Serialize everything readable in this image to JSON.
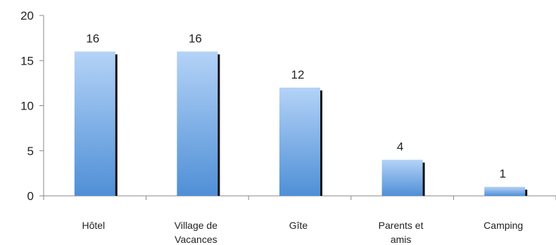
{
  "chart_data": {
    "type": "bar",
    "title": "",
    "xlabel": "",
    "ylabel": "",
    "categories": [
      [
        "Hôtel"
      ],
      [
        "Village de",
        "Vacances"
      ],
      [
        "Gîte"
      ],
      [
        "Parents et",
        "amis"
      ],
      [
        "Camping"
      ]
    ],
    "values": [
      16,
      16,
      12,
      4,
      1
    ],
    "ylim": [
      0,
      20
    ],
    "yticks": [
      0,
      5,
      10,
      15,
      20
    ],
    "grid": false,
    "legend": "none",
    "data_labels": true,
    "colors": {
      "bar_top": "#b4d3f7",
      "bar_bottom": "#4f8fd6",
      "bar_shadow": "#111111",
      "axis": "#888888",
      "text": "#222222"
    }
  }
}
